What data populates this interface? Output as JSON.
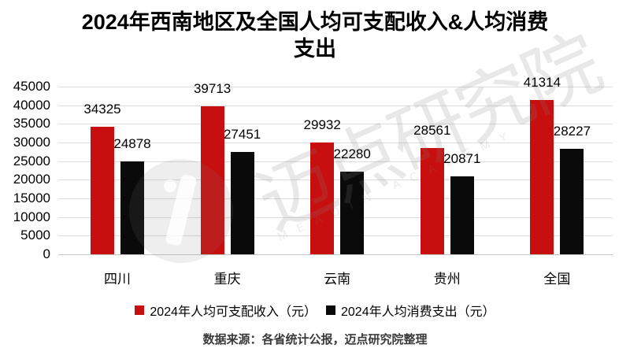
{
  "title": "2024年西南地区及全国人均可支配收入&人均消费\n支出",
  "chart_data": {
    "type": "bar",
    "title": "2024年西南地区及全国人均可支配收入&人均消费支出",
    "categories": [
      "四川",
      "重庆",
      "云南",
      "贵州",
      "全国"
    ],
    "series": [
      {
        "name": "2024年人均可支配收入（元）",
        "color": "#c80f0f",
        "values": [
          34325,
          39713,
          29932,
          28561,
          41314
        ]
      },
      {
        "name": "2024年人均消费支出（元）",
        "color": "#0a0a0a",
        "values": [
          24878,
          27451,
          22280,
          20871,
          28227
        ]
      }
    ],
    "ylim": [
      0,
      45000
    ],
    "yticks": [
      0,
      5000,
      10000,
      15000,
      20000,
      25000,
      30000,
      35000,
      40000,
      45000
    ],
    "grid": true,
    "legend_position": "bottom",
    "value_labels": true,
    "xlabel": "",
    "ylabel": ""
  },
  "watermark": {
    "cjk_text": "迈点研究院",
    "latin_text": "MEADIN ACADEMY"
  },
  "footer": {
    "source_note": "数据来源：各省统计公报，迈点研究院整理"
  },
  "colors": {
    "income_bar": "#c80f0f",
    "expense_bar": "#0a0a0a",
    "gridline": "#dcdcdc",
    "background": "#ffffff",
    "footer_text": "#3a3a3a"
  }
}
